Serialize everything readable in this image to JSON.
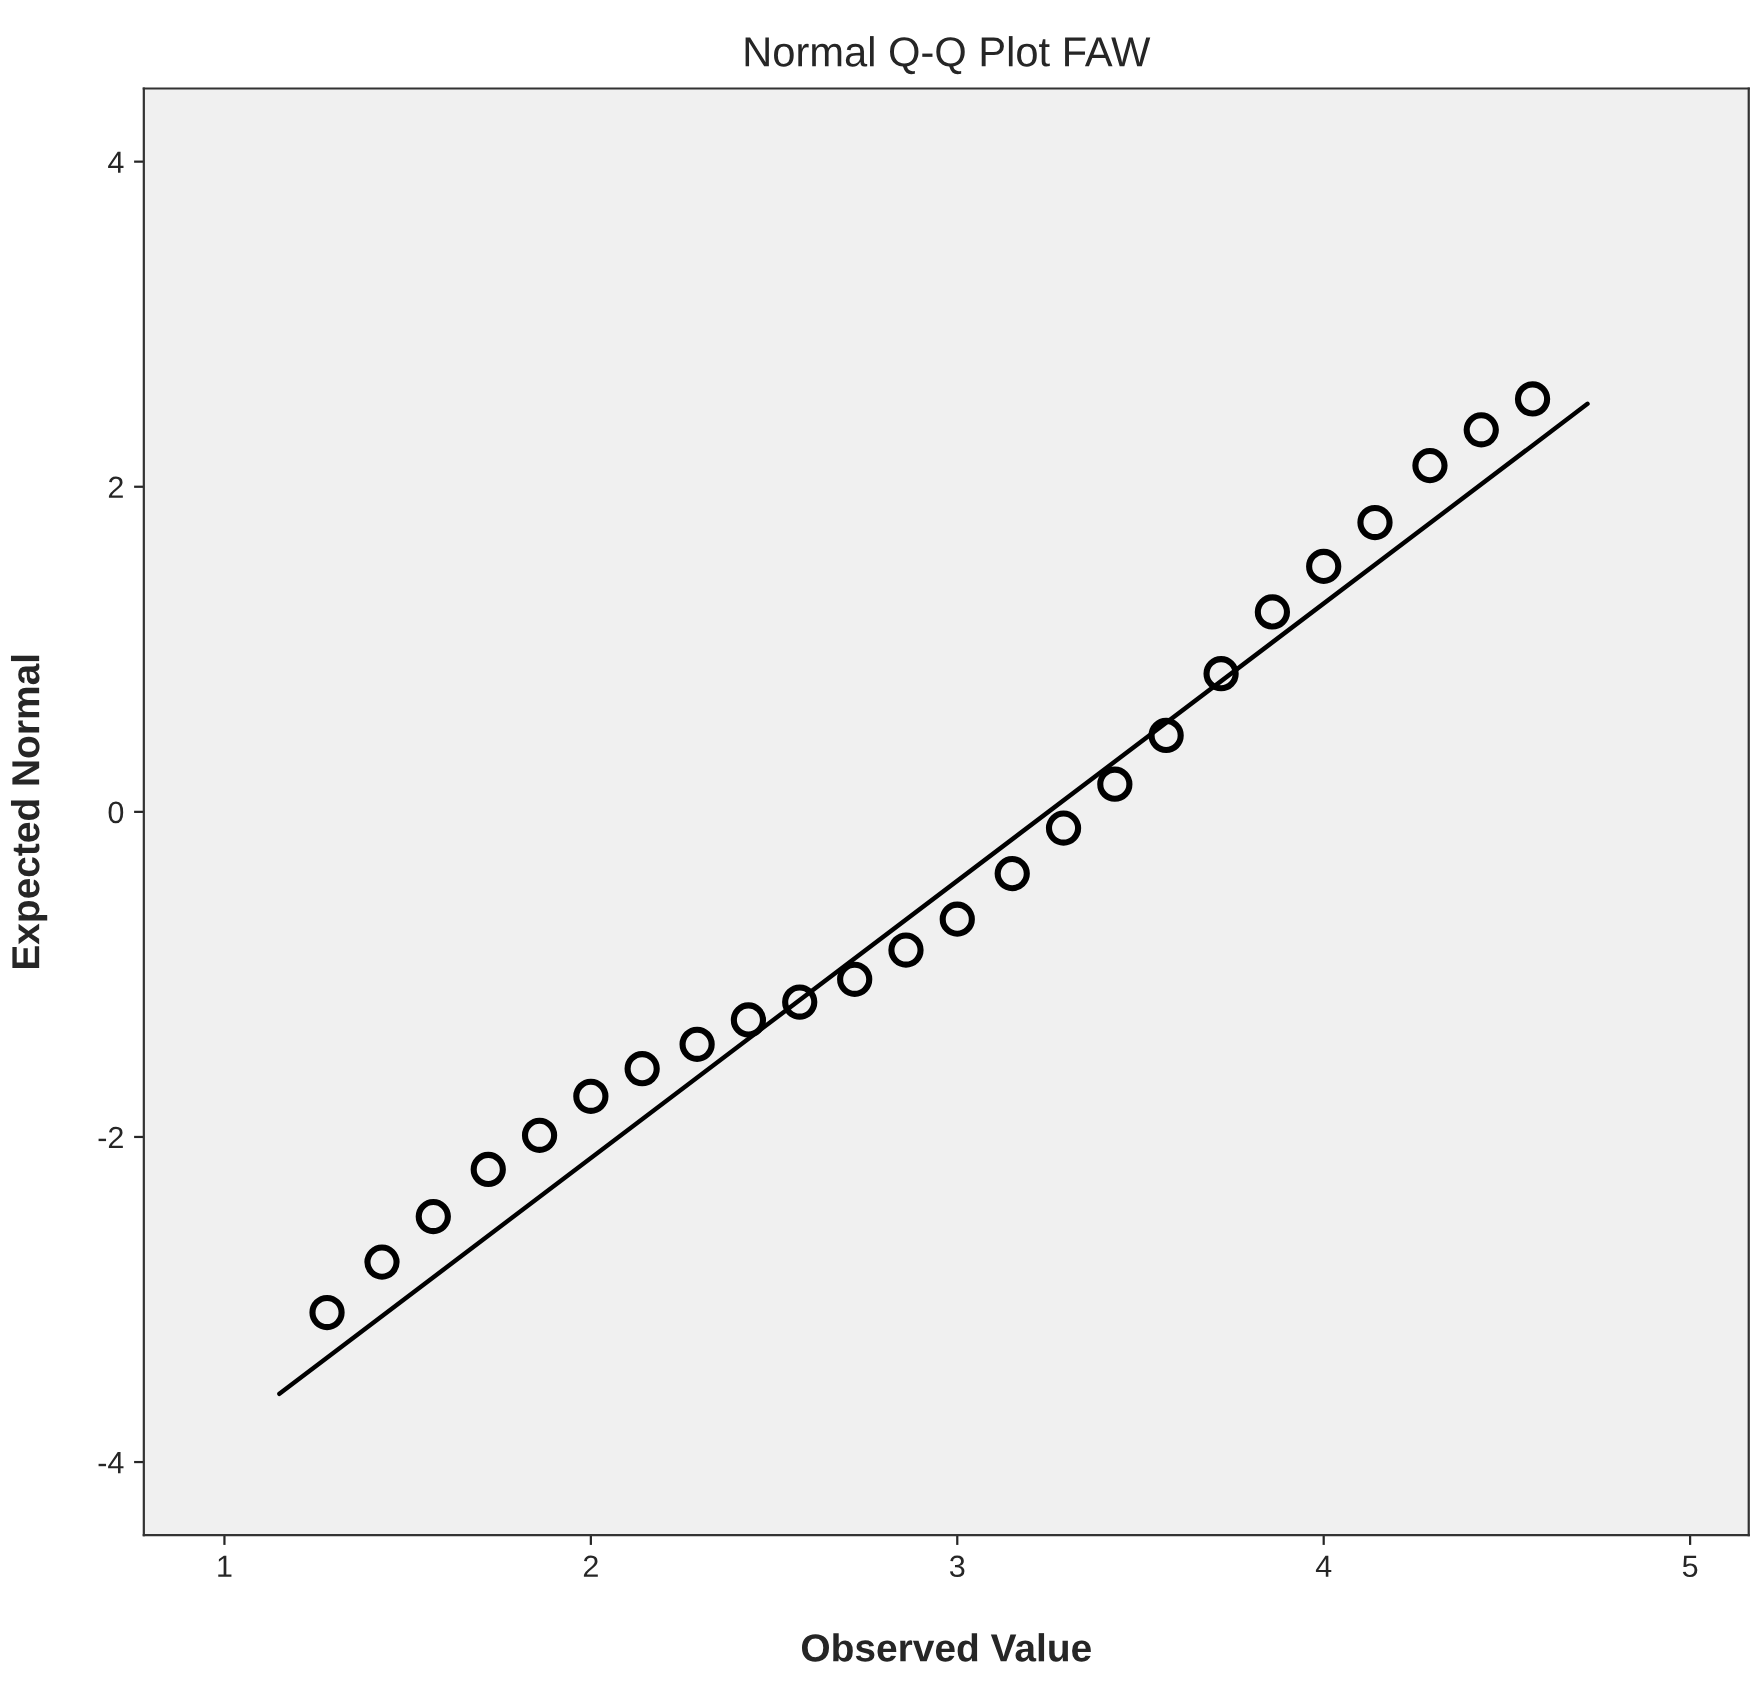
{
  "chart_data": {
    "type": "scatter",
    "title": "Normal Q-Q Plot FAW",
    "xlabel": "Observed Value",
    "ylabel": "Expected Normal",
    "series": [
      {
        "marker": "circle",
        "color": "#000000",
        "x": [
          1.28,
          1.43,
          1.57,
          1.72,
          1.86,
          2.0,
          2.14,
          2.29,
          2.43,
          2.57,
          2.72,
          2.86,
          3.0,
          3.15,
          3.29,
          3.43,
          3.57,
          3.72,
          3.86,
          4.0,
          4.14,
          4.29,
          4.43,
          4.57
        ],
        "values": [
          -3.08,
          -2.77,
          -2.49,
          -2.2,
          -1.99,
          -1.75,
          -1.58,
          -1.43,
          -1.28,
          -1.17,
          -1.03,
          -0.85,
          -0.66,
          -0.38,
          -0.1,
          0.17,
          0.47,
          0.85,
          1.23,
          1.51,
          1.78,
          2.13,
          2.35,
          2.54
        ]
      },
      {
        "type": "line",
        "color": "#000000",
        "x": [
          1.15,
          4.72
        ],
        "values": [
          -3.58,
          2.51
        ]
      }
    ],
    "xlim": [
      0.78,
      5.16
    ],
    "ylim": [
      -4.45,
      4.45
    ],
    "xticks": [
      1,
      2,
      3,
      4,
      5
    ],
    "yticks": [
      -4,
      -2,
      0,
      2,
      4
    ],
    "grid": false,
    "legend": false
  }
}
